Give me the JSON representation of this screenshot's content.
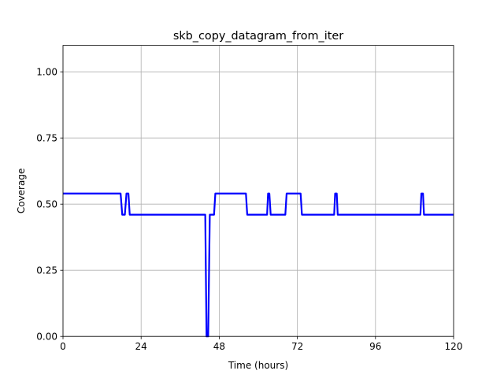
{
  "chart_data": {
    "type": "line",
    "title": "skb_copy_datagram_from_iter",
    "xlabel": "Time (hours)",
    "ylabel": "Coverage",
    "xlim": [
      0,
      120
    ],
    "ylim": [
      0,
      1.1
    ],
    "xticks": [
      0,
      24,
      48,
      72,
      96,
      120
    ],
    "xtick_labels": [
      "0",
      "24",
      "48",
      "72",
      "96",
      "120"
    ],
    "yticks": [
      0,
      0.25,
      0.5,
      0.75,
      1.0
    ],
    "ytick_labels": [
      "0.00",
      "0.25",
      "0.50",
      "0.75",
      "1.00"
    ],
    "grid": true,
    "series": [
      {
        "color": "#0000ff",
        "x": [
          0,
          17.7,
          18.2,
          19.0,
          19.5,
          20.1,
          20.5,
          43.7,
          44.1,
          44.6,
          45.1,
          46.4,
          46.8,
          56.2,
          56.6,
          62.7,
          63.0,
          63.4,
          63.8,
          68.3,
          68.7,
          73.0,
          73.4,
          83.3,
          83.6,
          84.1,
          84.4,
          109.8,
          110.1,
          110.6,
          110.9,
          120
        ],
        "y": [
          0.54,
          0.54,
          0.46,
          0.46,
          0.54,
          0.54,
          0.46,
          0.46,
          0.0,
          0.0,
          0.46,
          0.46,
          0.54,
          0.54,
          0.46,
          0.46,
          0.54,
          0.54,
          0.46,
          0.46,
          0.54,
          0.54,
          0.46,
          0.46,
          0.54,
          0.54,
          0.46,
          0.46,
          0.54,
          0.54,
          0.46,
          0.46
        ]
      }
    ]
  }
}
